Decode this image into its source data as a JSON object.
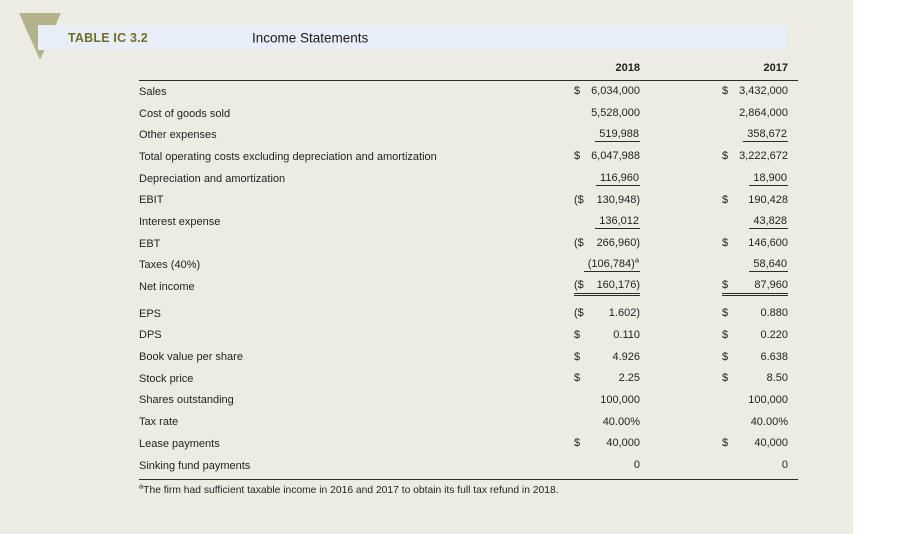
{
  "header": {
    "label": "TABLE IC 3.2",
    "title": "Income Statements"
  },
  "columns": [
    "2018",
    "2017"
  ],
  "rows_main": [
    {
      "label": "Sales",
      "y2018": {
        "p": "$",
        "v": "6,034,000"
      },
      "y2017": {
        "p": "$",
        "v": "3,432,000"
      }
    },
    {
      "label": "Cost of goods sold",
      "y2018": {
        "p": "",
        "v": "5,528,000"
      },
      "y2017": {
        "p": "",
        "v": "2,864,000"
      }
    },
    {
      "label": "Other expenses",
      "y2018": {
        "p": "",
        "v": "519,988",
        "u": true
      },
      "y2017": {
        "p": "",
        "v": "358,672",
        "u": true
      }
    },
    {
      "label": "Total operating costs excluding depreciation and amortization",
      "y2018": {
        "p": "$",
        "v": "6,047,988"
      },
      "y2017": {
        "p": "$",
        "v": "3,222,672"
      }
    },
    {
      "label": "Depreciation and amortization",
      "y2018": {
        "p": "",
        "v": "116,960",
        "u": true
      },
      "y2017": {
        "p": "",
        "v": "18,900",
        "u": true
      }
    },
    {
      "label": "EBIT",
      "y2018": {
        "p": "($",
        "v": "130,948)"
      },
      "y2017": {
        "p": "$",
        "v": "190,428"
      }
    },
    {
      "label": "Interest expense",
      "y2018": {
        "p": "",
        "v": "136,012",
        "u": true
      },
      "y2017": {
        "p": "",
        "v": "43,828",
        "u": true
      }
    },
    {
      "label": "EBT",
      "y2018": {
        "p": "($",
        "v": "266,960)"
      },
      "y2017": {
        "p": "$",
        "v": "146,600"
      }
    },
    {
      "label": "Taxes (40%)",
      "y2018": {
        "p": "",
        "v": "(106,784)",
        "sup": "a",
        "u": true
      },
      "y2017": {
        "p": "",
        "v": "58,640",
        "u": true
      }
    },
    {
      "label": "Net income",
      "y2018": {
        "p": "($",
        "v": "160,176)",
        "dbl": true
      },
      "y2017": {
        "p": "$",
        "v": "87,960",
        "dbl": true
      }
    }
  ],
  "rows_secondary": [
    {
      "label": "EPS",
      "y2018": {
        "p": "($",
        "v": "1.602)"
      },
      "y2017": {
        "p": "$",
        "v": "0.880"
      }
    },
    {
      "label": "DPS",
      "y2018": {
        "p": "$",
        "v": "0.110"
      },
      "y2017": {
        "p": "$",
        "v": "0.220"
      }
    },
    {
      "label": "Book value per share",
      "y2018": {
        "p": "$",
        "v": "4.926"
      },
      "y2017": {
        "p": "$",
        "v": "6.638"
      }
    },
    {
      "label": "Stock price",
      "y2018": {
        "p": "$",
        "v": "2.25"
      },
      "y2017": {
        "p": "$",
        "v": "8.50"
      }
    },
    {
      "label": "Shares outstanding",
      "y2018": {
        "p": "",
        "v": "100,000"
      },
      "y2017": {
        "p": "",
        "v": "100,000"
      }
    },
    {
      "label": "Tax rate",
      "y2018": {
        "p": "",
        "v": "40.00%"
      },
      "y2017": {
        "p": "",
        "v": "40.00%"
      }
    },
    {
      "label": "Lease payments",
      "y2018": {
        "p": "$",
        "v": "40,000"
      },
      "y2017": {
        "p": "$",
        "v": "40,000"
      }
    },
    {
      "label": "Sinking fund payments",
      "y2018": {
        "p": "",
        "v": "0"
      },
      "y2017": {
        "p": "",
        "v": "0"
      }
    }
  ],
  "footnote": {
    "sup": "a",
    "text": "The firm had sufficient taxable income in 2016 and 2017 to obtain its full tax refund in 2018."
  },
  "colors": {
    "page_bg": "#edece2",
    "band_bg": "#e7eef8",
    "triangle": "#b3b28a",
    "table_label": "#716f25",
    "text": "#231f20"
  }
}
